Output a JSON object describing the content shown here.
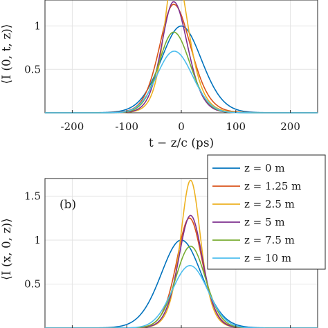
{
  "chart_data": [
    {
      "type": "line",
      "panel": "a",
      "xlabel": "t − z/c (ps)",
      "ylabel": "⟨I (0, t, z)⟩",
      "xlim": [
        -250,
        250
      ],
      "ylim": [
        0,
        1.3
      ],
      "xticks": [
        -200,
        -100,
        0,
        100,
        200
      ],
      "xtick_labels": [
        "-200",
        "-100",
        "0",
        "100",
        "200"
      ],
      "yticks": [
        0.5,
        1
      ],
      "ytick_labels": [
        "0.5",
        "1"
      ],
      "grid": true,
      "series": [
        {
          "name": "z = 0 m",
          "color": "#0072BD",
          "center": 0,
          "peak": 1.0,
          "width": 55,
          "skew": 1.0
        },
        {
          "name": "z = 1.25 m",
          "color": "#D95319",
          "center": -14,
          "peak": 1.25,
          "width": 40,
          "skew": 1.2
        },
        {
          "name": "z = 2.5 m",
          "color": "#EDB120",
          "center": -12,
          "peak": 1.68,
          "width": 30,
          "skew": 1.3
        },
        {
          "name": "z = 5 m",
          "color": "#7E2F8E",
          "center": -14,
          "peak": 1.28,
          "width": 34,
          "skew": 1.15
        },
        {
          "name": "z = 7.5 m",
          "color": "#77AC30",
          "center": -14,
          "peak": 0.93,
          "width": 40,
          "skew": 1.1
        },
        {
          "name": "z = 10 m",
          "color": "#4DBEEE",
          "center": -13,
          "peak": 0.71,
          "width": 45,
          "skew": 1.05
        }
      ]
    },
    {
      "type": "line",
      "panel": "b",
      "label": "(b)",
      "xlabel": "",
      "ylabel": "⟨I (x, 0, z)⟩",
      "xlim": [
        -250,
        250
      ],
      "ylim": [
        0,
        1.7
      ],
      "yticks": [
        0.5,
        1,
        1.5
      ],
      "ytick_labels": [
        "0.5",
        "1",
        "1.5"
      ],
      "grid": true,
      "legend": "top-right",
      "series": [
        {
          "name": "z = 0 m",
          "color": "#0072BD",
          "center": 0,
          "peak": 1.0,
          "width": 55,
          "skew": 1.0
        },
        {
          "name": "z = 1.25 m",
          "color": "#D95319",
          "center": 15,
          "peak": 1.25,
          "width": 36,
          "skew": 1.0
        },
        {
          "name": "z = 2.5 m",
          "color": "#EDB120",
          "center": 17,
          "peak": 1.68,
          "width": 30,
          "skew": 1.0
        },
        {
          "name": "z = 5 m",
          "color": "#7E2F8E",
          "center": 17,
          "peak": 1.28,
          "width": 34,
          "skew": 1.0
        },
        {
          "name": "z = 7.5 m",
          "color": "#77AC30",
          "center": 17,
          "peak": 0.93,
          "width": 40,
          "skew": 1.0
        },
        {
          "name": "z = 10 m",
          "color": "#4DBEEE",
          "center": 16,
          "peak": 0.71,
          "width": 46,
          "skew": 1.0
        }
      ]
    }
  ],
  "legend_entries": [
    "z = 0 m",
    "z = 1.25 m",
    "z = 2.5 m",
    "z = 5 m",
    "z = 7.5 m",
    "z = 10 m"
  ]
}
